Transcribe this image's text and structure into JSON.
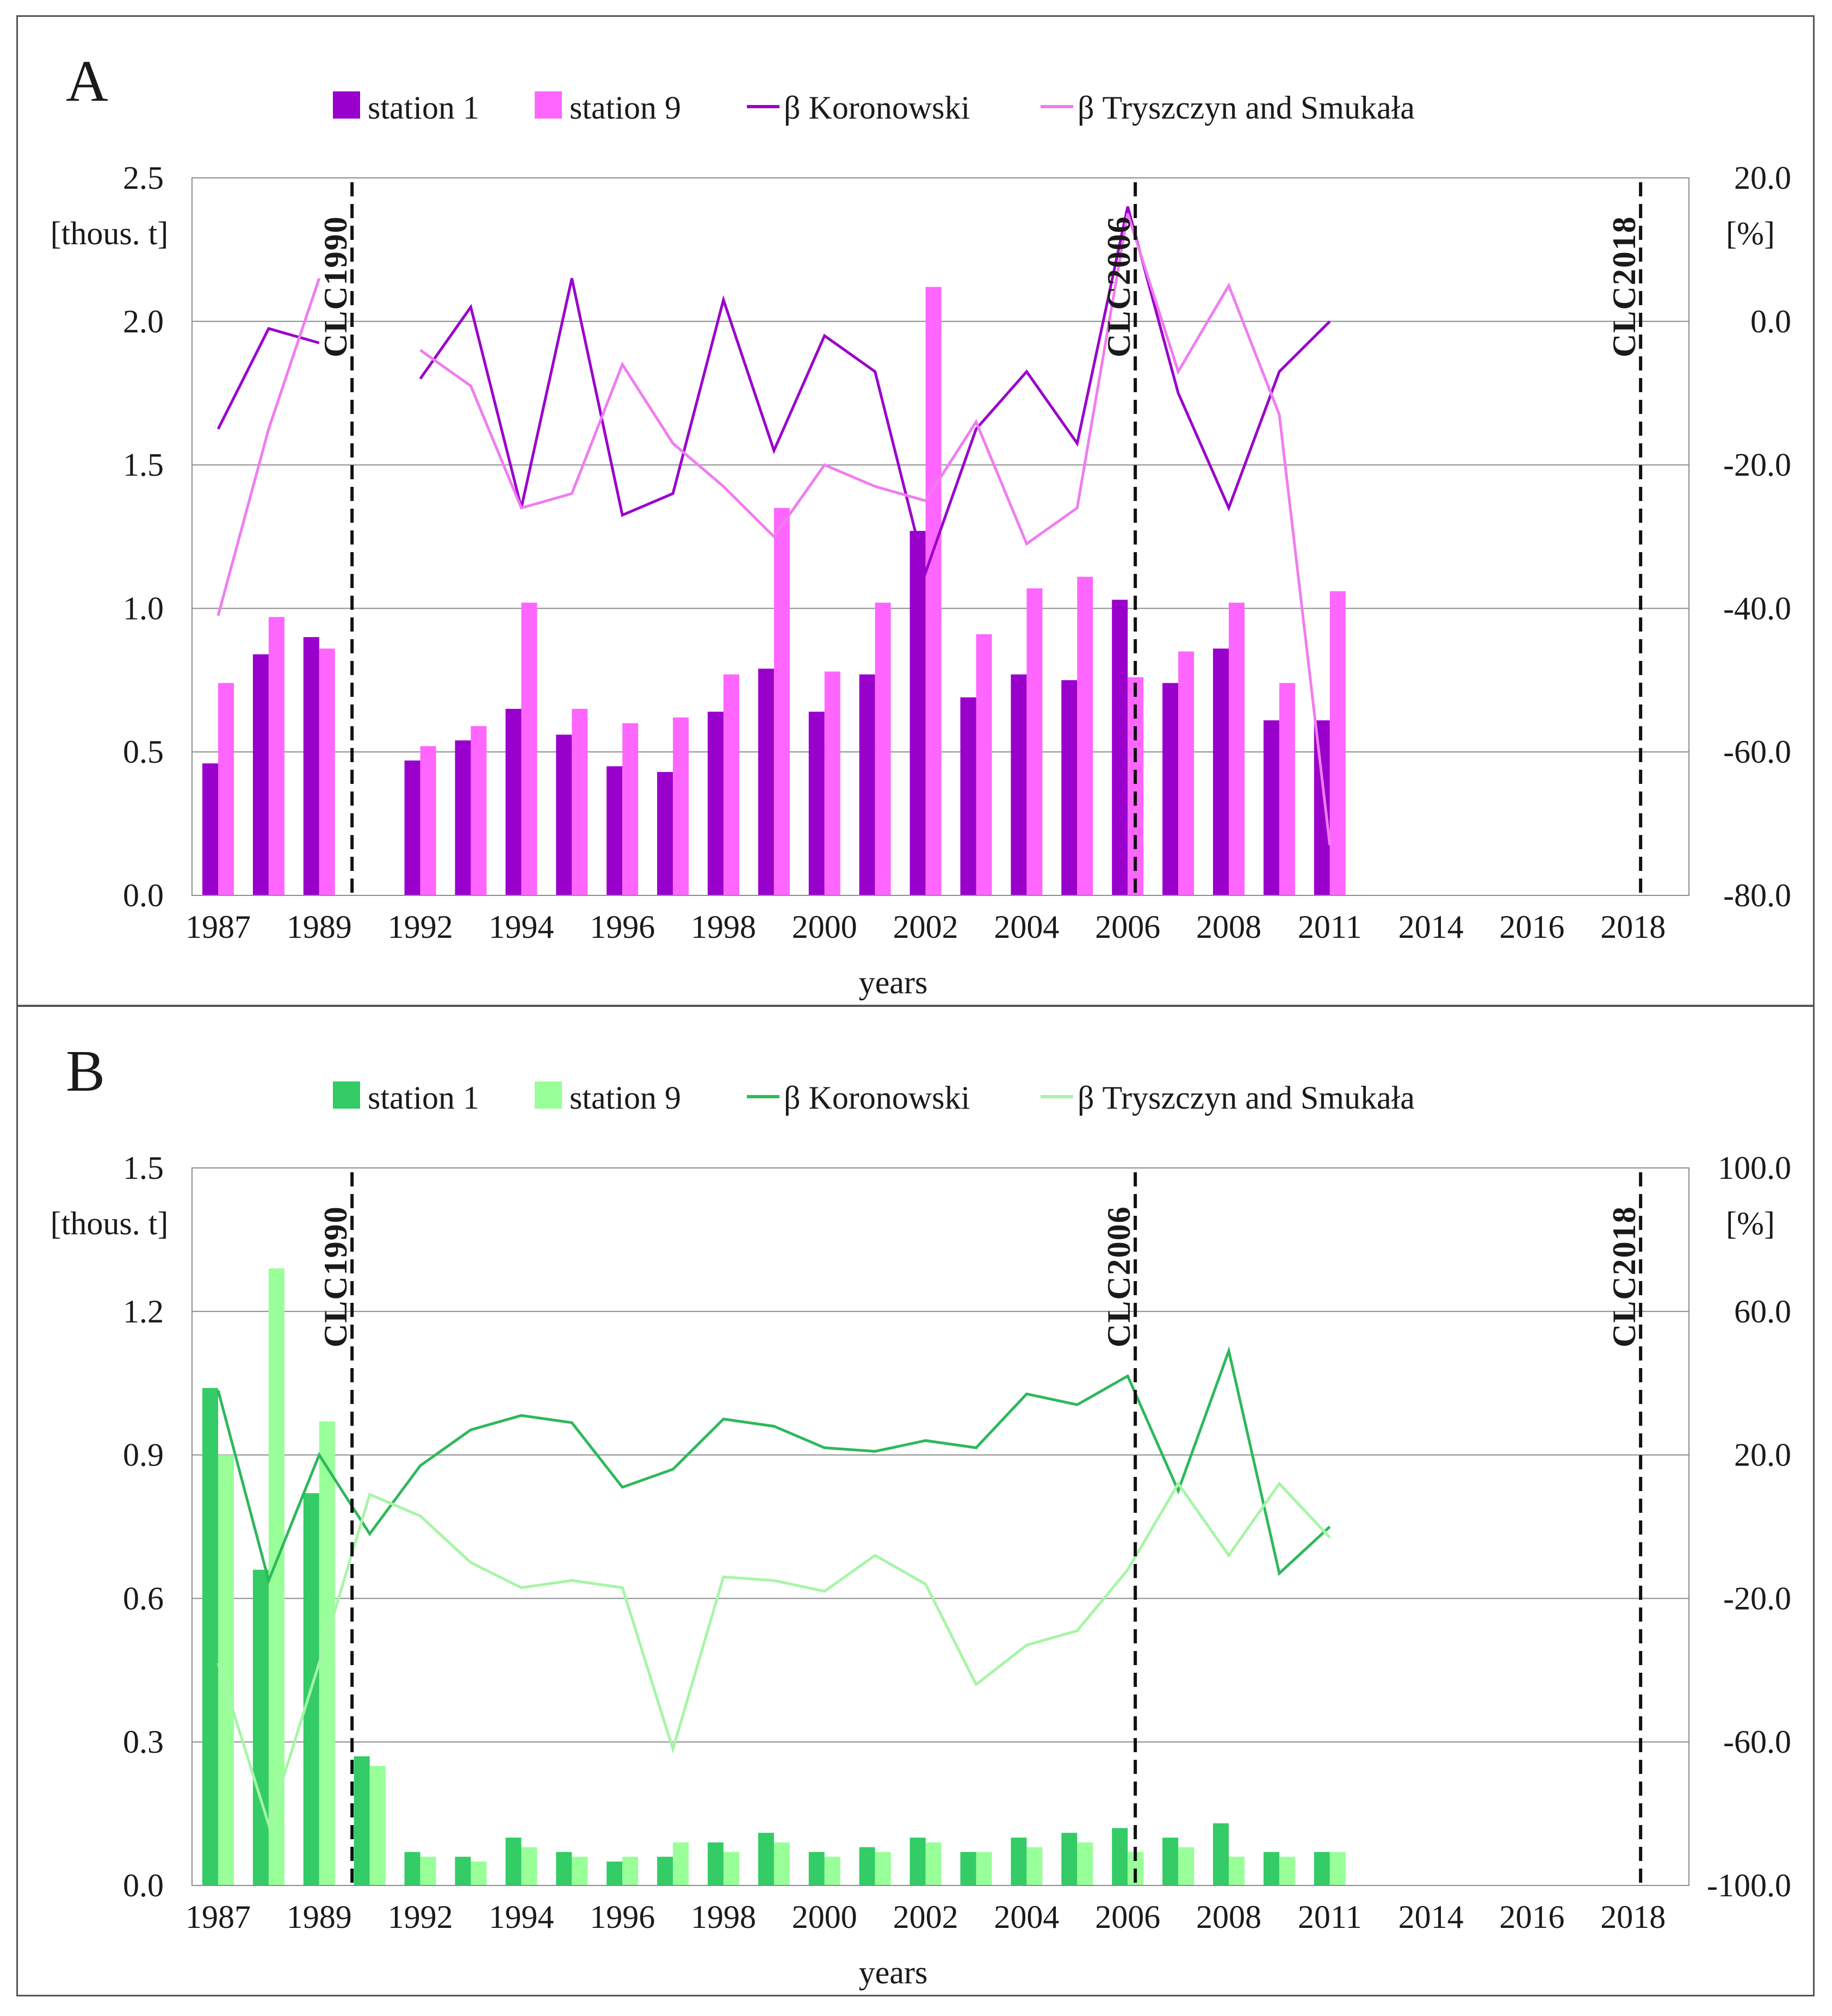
{
  "chart_data": [
    {
      "panel_label": "A",
      "type": "bar+line",
      "legend": [
        "station 1",
        "station 9",
        "β Koronowski",
        "β Tryszczyn and Smukała"
      ],
      "colors": {
        "station_1": "#9900CC",
        "station_9": "#FF66FF",
        "beta_koronowski": "#9900CC",
        "beta_tryszczyn": "#F07CF0"
      },
      "x_years": [
        1987,
        1988,
        1989,
        1990,
        1991,
        1992,
        1993,
        1994,
        1995,
        1996,
        1997,
        1998,
        1999,
        2000,
        2001,
        2002,
        2003,
        2004,
        2005,
        2006,
        2007,
        2008,
        2009,
        2010,
        2011,
        2012,
        2013,
        2014,
        2015,
        2016,
        2017,
        2018
      ],
      "x_tick_labels": [
        "1987",
        "1989",
        "1992",
        "1994",
        "1996",
        "1998",
        "2000",
        "2002",
        "2004",
        "2006",
        "2008",
        "2011",
        "2014",
        "2016",
        "2018"
      ],
      "x_tick_positions": [
        0,
        2,
        4,
        6,
        8,
        10,
        12,
        14,
        16,
        18,
        20,
        22,
        24,
        26,
        28
      ],
      "xlabel": "years",
      "ylabel_left": "[thous. t]",
      "ylabel_right": "[%]",
      "ylim_left": [
        0,
        2.5
      ],
      "ylim_right": [
        -80,
        20
      ],
      "y_ticks_left": [
        "0.0",
        "0.5",
        "1.0",
        "1.5",
        "2.0",
        "2.5"
      ],
      "y_ticks_right": [
        "-80.0",
        "-60.0",
        "-40.0",
        "-20.0",
        "0.0",
        "20.0"
      ],
      "markers": [
        {
          "label": "CLC1990",
          "position": 2.65
        },
        {
          "label": "CLC2006",
          "position": 18.15
        },
        {
          "label": "CLC2018",
          "position": 28.15
        }
      ],
      "bars_x": [
        0,
        1,
        2,
        4,
        5,
        6,
        7,
        8,
        9,
        10,
        11,
        12,
        13,
        14,
        15,
        16,
        17,
        18,
        19,
        20,
        21,
        22
      ],
      "series": [
        {
          "name": "station 1",
          "kind": "bar",
          "axis": "left",
          "values": [
            0.46,
            0.84,
            0.9,
            0.47,
            0.54,
            0.65,
            0.56,
            0.45,
            0.43,
            0.64,
            0.79,
            0.64,
            0.77,
            1.27,
            0.69,
            0.77,
            0.75,
            1.03,
            0.74,
            0.86,
            0.61,
            0.61
          ]
        },
        {
          "name": "station 9",
          "kind": "bar",
          "axis": "left",
          "values": [
            0.74,
            0.97,
            0.86,
            0.52,
            0.59,
            1.02,
            0.65,
            0.6,
            0.62,
            0.77,
            1.35,
            0.78,
            1.02,
            2.12,
            0.91,
            1.07,
            1.11,
            0.76,
            0.85,
            1.02,
            0.74,
            1.06
          ]
        },
        {
          "name": "β Koronowski",
          "kind": "line",
          "axis": "right",
          "segments": [
            {
              "x": [
                0,
                1,
                2
              ],
              "values": [
                -15.0,
                -1.0,
                -3.0
              ]
            },
            {
              "x": [
                4,
                5,
                6,
                7,
                8,
                9,
                10,
                11,
                12,
                13,
                14,
                15,
                16,
                17,
                18,
                19,
                20,
                21,
                22
              ],
              "values": [
                -8.0,
                2.0,
                -26.0,
                6.0,
                -27.0,
                -24.0,
                3.0,
                -18.0,
                -2.0,
                -7.0,
                -35.0,
                -15.0,
                -7.0,
                -17.0,
                16.0,
                -10.0,
                -26.0,
                -7.0,
                0.0
              ]
            }
          ]
        },
        {
          "name": "β Tryszczyn and Smukała",
          "kind": "line",
          "axis": "right",
          "segments": [
            {
              "x": [
                0,
                1,
                2
              ],
              "values": [
                -41.0,
                -15.0,
                6.0
              ]
            },
            {
              "x": [
                4,
                5,
                6,
                7,
                8,
                9,
                10,
                11,
                12,
                13,
                14,
                15,
                16,
                17,
                18,
                19,
                20,
                21,
                22
              ],
              "values": [
                -4.0,
                -9.0,
                -26.0,
                -24.0,
                -6.0,
                -17.0,
                -23.0,
                -30.0,
                -20.0,
                -23.0,
                -25.0,
                -14.0,
                -31.0,
                -26.0,
                15.0,
                -7.0,
                5.0,
                -13.0,
                -73.0
              ]
            }
          ]
        }
      ]
    },
    {
      "panel_label": "B",
      "type": "bar+line",
      "legend": [
        "station 1",
        "station 9",
        "β Koronowski",
        "β Tryszczyn and Smukała"
      ],
      "colors": {
        "station_1": "#33CC66",
        "station_9": "#99FF99",
        "beta_koronowski": "#2EB85C",
        "beta_tryszczyn": "#A6F5A6"
      },
      "x_years": [
        1987,
        1988,
        1989,
        1990,
        1991,
        1992,
        1993,
        1994,
        1995,
        1996,
        1997,
        1998,
        1999,
        2000,
        2001,
        2002,
        2003,
        2004,
        2005,
        2006,
        2007,
        2008,
        2009,
        2010,
        2011,
        2012,
        2013,
        2014,
        2015,
        2016,
        2017,
        2018
      ],
      "x_tick_labels": [
        "1987",
        "1989",
        "1992",
        "1994",
        "1996",
        "1998",
        "2000",
        "2002",
        "2004",
        "2006",
        "2008",
        "2011",
        "2014",
        "2016",
        "2018"
      ],
      "x_tick_positions": [
        0,
        2,
        4,
        6,
        8,
        10,
        12,
        14,
        16,
        18,
        20,
        22,
        24,
        26,
        28
      ],
      "xlabel": "years",
      "ylabel_left": "[thous. t]",
      "ylabel_right": "[%]",
      "ylim_left": [
        0,
        1.5
      ],
      "ylim_right": [
        -100,
        100
      ],
      "y_ticks_left": [
        "0.0",
        "0.3",
        "0.6",
        "0.9",
        "1.2",
        "1.5"
      ],
      "y_ticks_right": [
        "-100.0",
        "-60.0",
        "-20.0",
        "20.0",
        "60.0",
        "100.0"
      ],
      "markers": [
        {
          "label": "CLC1990",
          "position": 2.65
        },
        {
          "label": "CLC2006",
          "position": 18.15
        },
        {
          "label": "CLC2018",
          "position": 28.15
        }
      ],
      "bars_x": [
        0,
        1,
        2,
        3,
        4,
        5,
        6,
        7,
        8,
        9,
        10,
        11,
        12,
        13,
        14,
        15,
        16,
        17,
        18,
        19,
        20,
        21,
        22
      ],
      "series": [
        {
          "name": "station 1",
          "kind": "bar",
          "axis": "left",
          "values": [
            1.04,
            0.66,
            0.82,
            0.27,
            0.07,
            0.06,
            0.1,
            0.07,
            0.05,
            0.06,
            0.09,
            0.11,
            0.07,
            0.08,
            0.1,
            0.07,
            0.1,
            0.11,
            0.12,
            0.1,
            0.13,
            0.07,
            0.07
          ]
        },
        {
          "name": "station 9",
          "kind": "bar",
          "axis": "left",
          "values": [
            0.9,
            1.29,
            0.97,
            0.25,
            0.06,
            0.05,
            0.08,
            0.06,
            0.06,
            0.09,
            0.07,
            0.09,
            0.06,
            0.07,
            0.09,
            0.07,
            0.08,
            0.09,
            0.07,
            0.08,
            0.06,
            0.06,
            0.07
          ]
        },
        {
          "name": "β Koronowski",
          "kind": "line",
          "axis": "right",
          "segments": [
            {
              "x": [
                0,
                1,
                2,
                3,
                4,
                5,
                6,
                7,
                8,
                9,
                10,
                11,
                12,
                13,
                14,
                15,
                16,
                17,
                18,
                19,
                20,
                21,
                22
              ],
              "values": [
                38.0,
                -15.0,
                20.0,
                -2.0,
                17.0,
                27.0,
                31.0,
                29.0,
                11.0,
                16.0,
                30.0,
                28.0,
                22.0,
                21.0,
                24.0,
                22.0,
                37.0,
                34.0,
                42.0,
                10.0,
                49.0,
                -13.0,
                0.0
              ]
            }
          ]
        },
        {
          "name": "β Tryszczyn and Smukała",
          "kind": "line",
          "axis": "right",
          "segments": [
            {
              "x": [
                0,
                1,
                2,
                3,
                4,
                5,
                6,
                7,
                8,
                9,
                10,
                11,
                12,
                13,
                14,
                15,
                16,
                17,
                18,
                19,
                20,
                21,
                22
              ],
              "values": [
                -38.0,
                -83.0,
                -38.0,
                9.0,
                3.0,
                -10.0,
                -17.0,
                -15.0,
                -17.0,
                -62.0,
                -14.0,
                -15.0,
                -18.0,
                -8.0,
                -16.0,
                -44.0,
                -33.0,
                -29.0,
                -12.0,
                12.0,
                -8.0,
                12.0,
                -3.0
              ]
            }
          ]
        }
      ]
    }
  ]
}
